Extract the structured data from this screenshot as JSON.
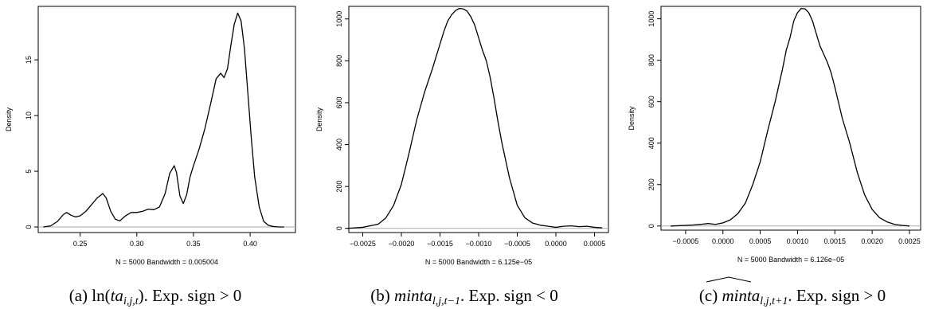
{
  "chart_data": [
    {
      "type": "line",
      "ylabel": "Density",
      "xlabel": "N = 5000   Bandwidth = 0.005004",
      "xlim": [
        0.213,
        0.44
      ],
      "ylim": [
        -0.5,
        19.8
      ],
      "xticks": [
        0.25,
        0.3,
        0.35,
        0.4
      ],
      "xtick_labels": [
        "0.25",
        "0.30",
        "0.35",
        "0.40"
      ],
      "yticks": [
        0,
        5,
        10,
        15
      ],
      "ytick_labels": [
        "0",
        "5",
        "10",
        "15"
      ],
      "zero_baseline": true,
      "caption": {
        "prefix": "(a) ",
        "math": "ln(ta",
        "sub": "i,j,t",
        "close": ")",
        "suffix": ". Exp. sign > 0"
      },
      "series": [
        {
          "x": [
            0.2175,
            0.224,
            0.23,
            0.235,
            0.238,
            0.242,
            0.246,
            0.25,
            0.255,
            0.26,
            0.265,
            0.27,
            0.273,
            0.277,
            0.281,
            0.285,
            0.29,
            0.295,
            0.3,
            0.305,
            0.31,
            0.315,
            0.32,
            0.325,
            0.329,
            0.333,
            0.335,
            0.338,
            0.341,
            0.344,
            0.347,
            0.35,
            0.355,
            0.36,
            0.365,
            0.37,
            0.374,
            0.377,
            0.38,
            0.383,
            0.386,
            0.389,
            0.392,
            0.395,
            0.398,
            0.401,
            0.404,
            0.408,
            0.412,
            0.416,
            0.42,
            0.425,
            0.43
          ],
          "y": [
            0.0,
            0.1,
            0.5,
            1.1,
            1.3,
            1.05,
            0.9,
            1.0,
            1.4,
            2.0,
            2.6,
            3.0,
            2.6,
            1.4,
            0.7,
            0.55,
            1.0,
            1.3,
            1.3,
            1.4,
            1.6,
            1.55,
            1.8,
            3.0,
            4.8,
            5.5,
            4.9,
            2.8,
            2.1,
            2.9,
            4.5,
            5.5,
            7.0,
            8.8,
            11.0,
            13.3,
            13.8,
            13.4,
            14.2,
            16.3,
            18.2,
            19.2,
            18.5,
            16.0,
            12.0,
            8.0,
            4.5,
            1.8,
            0.5,
            0.15,
            0.05,
            0.0,
            0.0
          ]
        }
      ]
    },
    {
      "type": "line",
      "ylabel": "Density",
      "xlabel": "N = 5000   Bandwidth = 6.125e−05",
      "xlim": [
        -0.00268,
        0.00068
      ],
      "ylim": [
        -20,
        1060
      ],
      "xticks": [
        -0.0025,
        -0.002,
        -0.0015,
        -0.001,
        -0.0005,
        0.0,
        0.0005
      ],
      "xtick_labels": [
        "−0.0025",
        "−0.0020",
        "−0.0015",
        "−0.0010",
        "−0.0005",
        "0.0000",
        "0.0005"
      ],
      "yticks": [
        0,
        200,
        400,
        600,
        800,
        1000
      ],
      "ytick_labels": [
        "0",
        "200",
        "400",
        "600",
        "800",
        "1000"
      ],
      "zero_baseline": true,
      "caption": {
        "prefix": "(b) ",
        "math": "minta",
        "sub": "l,j,t−1",
        "suffix": ". Exp. sign < 0"
      },
      "series": [
        {
          "x": [
            -0.0027,
            -0.0025,
            -0.0023,
            -0.0022,
            -0.0021,
            -0.002,
            -0.0019,
            -0.0018,
            -0.0017,
            -0.0016,
            -0.00155,
            -0.0015,
            -0.00145,
            -0.0014,
            -0.00135,
            -0.0013,
            -0.00125,
            -0.0012,
            -0.00115,
            -0.0011,
            -0.00105,
            -0.001,
            -0.00095,
            -0.0009,
            -0.00085,
            -0.0008,
            -0.00075,
            -0.0007,
            -0.0006,
            -0.0005,
            -0.0004,
            -0.0003,
            -0.0002,
            -0.0001,
            0.0,
            0.0001,
            0.0002,
            0.0003,
            0.0004,
            0.0005,
            0.0006
          ],
          "y": [
            0,
            5,
            20,
            50,
            110,
            210,
            360,
            520,
            650,
            760,
            820,
            880,
            940,
            990,
            1020,
            1040,
            1050,
            1048,
            1038,
            1010,
            970,
            910,
            850,
            800,
            720,
            620,
            510,
            410,
            240,
            110,
            50,
            25,
            15,
            10,
            5,
            10,
            12,
            8,
            10,
            5,
            2
          ]
        }
      ]
    },
    {
      "type": "line",
      "ylabel": "Density",
      "xlabel": "N = 5000   Bandwidth = 6.126e−05",
      "xlim": [
        -0.00083,
        0.00265
      ],
      "ylim": [
        -20,
        1060
      ],
      "xticks": [
        -0.0005,
        0.0,
        0.0005,
        0.001,
        0.0015,
        0.002,
        0.0025
      ],
      "xtick_labels": [
        "−0.0005",
        "0.0000",
        "0.0005",
        "0.0010",
        "0.0015",
        "0.0020",
        "0.0025"
      ],
      "yticks": [
        0,
        200,
        400,
        600,
        800,
        1000
      ],
      "ytick_labels": [
        "0",
        "200",
        "400",
        "600",
        "800",
        "1000"
      ],
      "zero_baseline": true,
      "caption": {
        "prefix": "(c) ",
        "math": "minta",
        "sub": "l,j,t+1",
        "suffix": ". Exp. sign > 0",
        "hat": true
      },
      "series": [
        {
          "x": [
            -0.0007,
            -0.0005,
            -0.0004,
            -0.0003,
            -0.0002,
            -0.0001,
            0.0,
            0.0001,
            0.0002,
            0.0003,
            0.0004,
            0.0005,
            0.0006,
            0.0007,
            0.0008,
            0.00085,
            0.0009,
            0.00095,
            0.001,
            0.00105,
            0.0011,
            0.00115,
            0.0012,
            0.00125,
            0.0013,
            0.00135,
            0.0014,
            0.00145,
            0.0015,
            0.0016,
            0.0017,
            0.0018,
            0.0019,
            0.002,
            0.0021,
            0.0022,
            0.0023,
            0.0024,
            0.0025
          ],
          "y": [
            0,
            3,
            5,
            8,
            12,
            8,
            15,
            30,
            60,
            110,
            200,
            310,
            460,
            600,
            760,
            850,
            910,
            990,
            1030,
            1050,
            1048,
            1030,
            990,
            930,
            870,
            830,
            790,
            740,
            670,
            520,
            400,
            260,
            150,
            80,
            40,
            20,
            8,
            3,
            0
          ]
        }
      ]
    }
  ]
}
